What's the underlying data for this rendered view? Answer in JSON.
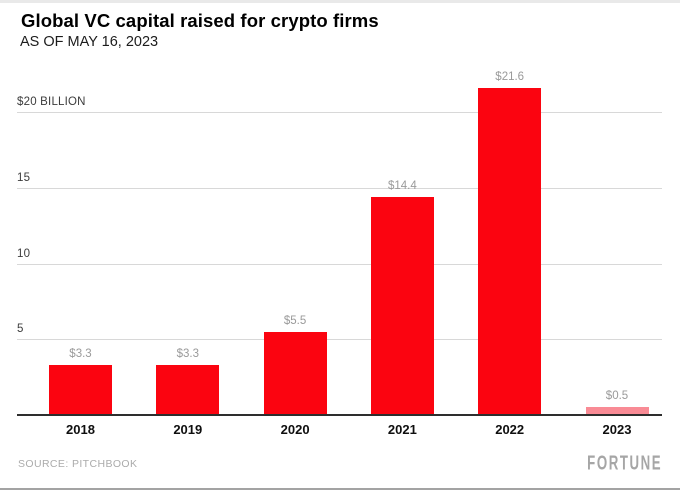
{
  "header": {
    "title": "Global VC capital raised for crypto firms",
    "subtitle": "AS OF MAY 16, 2023"
  },
  "footer": {
    "source": "SOURCE: PITCHBOOK",
    "brand": "FORTUNE"
  },
  "colors": {
    "bar_red": "#fb0410",
    "bar_pink": "#f98b95",
    "gridline": "#d8d8d8",
    "axis_line": "#2e2e2e",
    "tick_label": "#3c3c3c",
    "value_label": "#9a9a9a",
    "year_label": "#0f0f0f"
  },
  "chart_data": {
    "type": "bar",
    "title": "Global VC capital raised for crypto firms",
    "subtitle": "AS OF MAY 16, 2023",
    "xlabel": "",
    "ylabel": "$ billions",
    "categories": [
      "2018",
      "2019",
      "2020",
      "2021",
      "2022",
      "2023"
    ],
    "values": [
      3.3,
      3.3,
      5.5,
      14.4,
      21.6,
      0.5
    ],
    "value_labels": [
      "$3.3",
      "$3.3",
      "$5.5",
      "$14.4",
      "$21.6",
      "$0.5"
    ],
    "bar_colors": [
      "#fb0410",
      "#fb0410",
      "#fb0410",
      "#fb0410",
      "#fb0410",
      "#f98b95"
    ],
    "yticks": [
      {
        "value": 20,
        "label": "$20 BILLION"
      },
      {
        "value": 15,
        "label": "15"
      },
      {
        "value": 10,
        "label": "10"
      },
      {
        "value": 5,
        "label": "5"
      }
    ],
    "ylim": [
      0,
      21.6
    ],
    "grid": true,
    "legend": false
  }
}
